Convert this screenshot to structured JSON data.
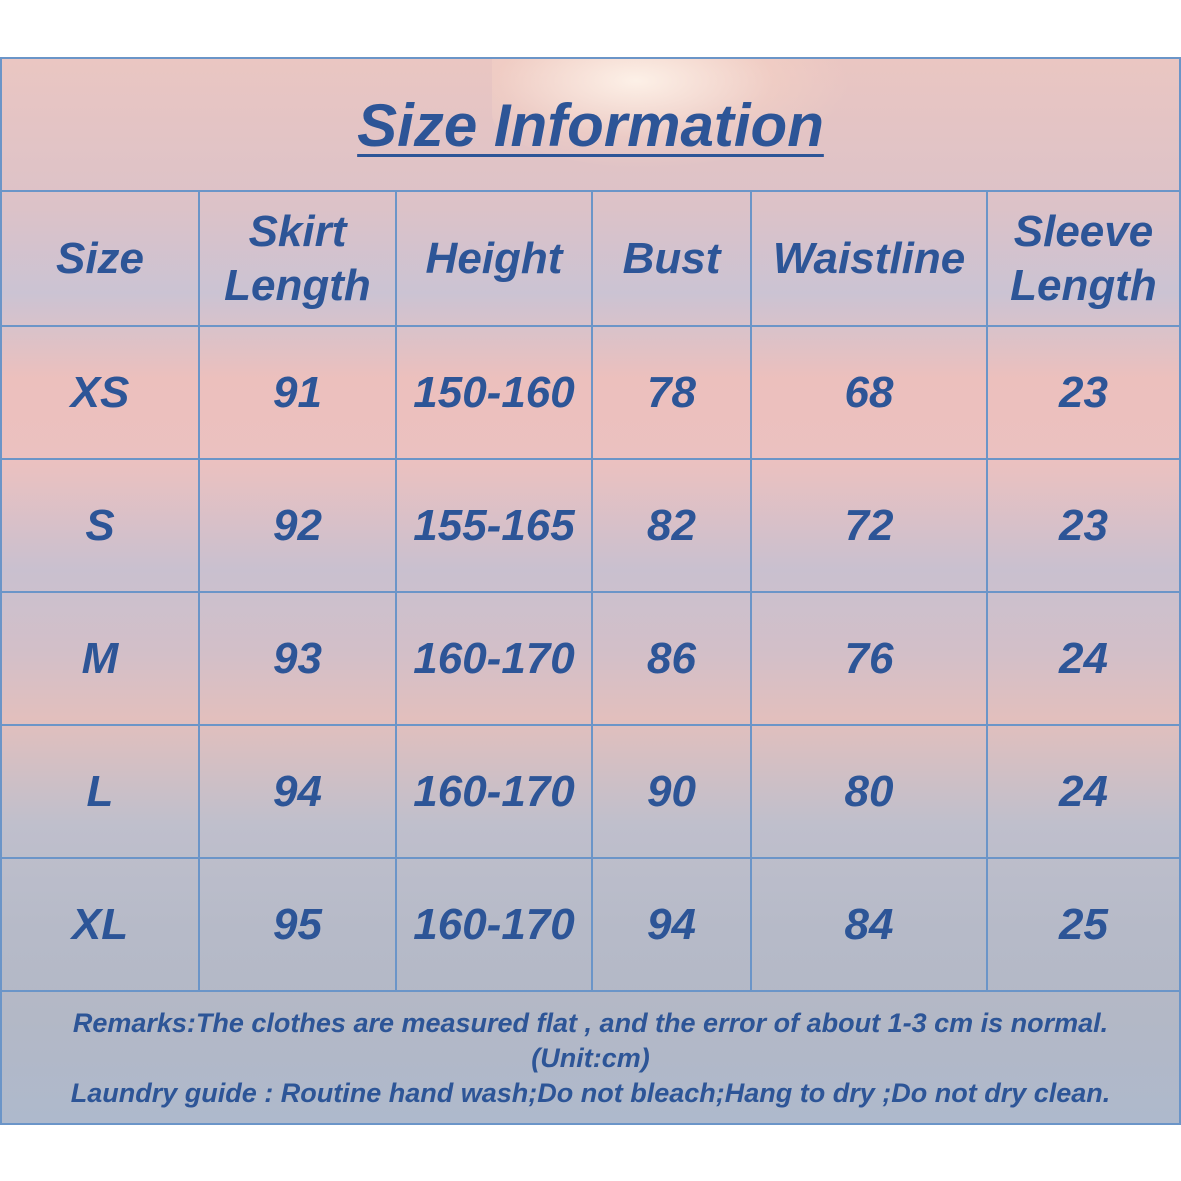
{
  "title": "Size Information",
  "table": {
    "headers": [
      "Size",
      "Skirt Length",
      "Height",
      "Bust",
      "Waistline",
      "Sleeve Length"
    ],
    "rows": [
      [
        "XS",
        "91",
        "150-160",
        "78",
        "68",
        "23"
      ],
      [
        "S",
        "92",
        "155-165",
        "82",
        "72",
        "23"
      ],
      [
        "M",
        "93",
        "160-170",
        "86",
        "76",
        "24"
      ],
      [
        "L",
        "94",
        "160-170",
        "90",
        "80",
        "24"
      ],
      [
        "XL",
        "95",
        "160-170",
        "94",
        "84",
        "25"
      ]
    ]
  },
  "remarks": {
    "line1": "Remarks:The clothes are measured flat , and the error of about 1-3 cm is normal.",
    "line2": "(Unit:cm)",
    "line3": "Laundry guide : Routine hand wash;Do not bleach;Hang to dry ;Do not dry clean."
  },
  "colors": {
    "text": "#2d5597",
    "border": "#6b95c8"
  }
}
